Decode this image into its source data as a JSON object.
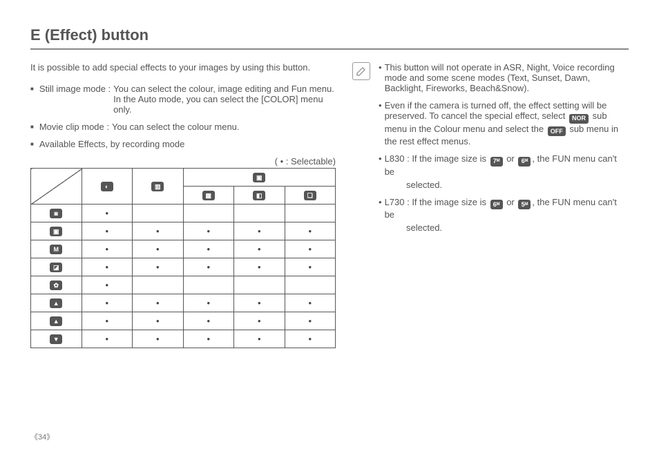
{
  "title": "E (Effect) button",
  "intro": "It is possible to add special effects to your images by using this button.",
  "bullets": {
    "still": {
      "label": "Still image mode :",
      "body": "You can select the colour, image editing and Fun menu. In the Auto mode, you can  select the [COLOR] menu only."
    },
    "movie": {
      "label": "Movie clip mode :",
      "body": "You can select the colour menu."
    },
    "avail": {
      "label": "Available Effects, by recording mode",
      "body": ""
    }
  },
  "legend": "( • : Selectable)",
  "table": {
    "col_icons": [
      "◐",
      "▥",
      "▣"
    ],
    "sub_icons": [
      "▦",
      "◧",
      "❏"
    ],
    "row_icons": [
      "◙",
      "▣",
      "M",
      "◪",
      "✿",
      "▲",
      "▲",
      "▼"
    ],
    "cells": [
      [
        true,
        false,
        false,
        false,
        false
      ],
      [
        true,
        true,
        true,
        true,
        true
      ],
      [
        true,
        true,
        true,
        true,
        true
      ],
      [
        true,
        true,
        true,
        true,
        true
      ],
      [
        true,
        false,
        false,
        false,
        false
      ],
      [
        true,
        true,
        true,
        true,
        true
      ],
      [
        true,
        true,
        true,
        true,
        true
      ],
      [
        true,
        true,
        true,
        true,
        true
      ]
    ]
  },
  "notes": {
    "n1": "This button will not operate in ASR, Night, Voice recording mode and some scene modes (Text, Sunset, Dawn, Backlight, Fireworks, Beach&Snow).",
    "n2_a": "Even if the camera is turned off, the effect setting will be preserved. To cancel the special effect, select ",
    "n2_icon1": "NOR",
    "n2_b": " sub menu in the Colour menu and select the ",
    "n2_icon2": "OFF",
    "n2_c": " sub menu in the rest effect menus.",
    "n3_pre": "L830 : If the image size is ",
    "n3_i1": "7ᴹ",
    "n3_mid": " or ",
    "n3_i2": "6ᴹ",
    "n3_post": ", the FUN menu can't be",
    "n3_tail": "selected.",
    "n4_pre": "L730 : If the image size is ",
    "n4_i1": "6ᴹ",
    "n4_mid": " or ",
    "n4_i2": "5ᴹ",
    "n4_post": ", the FUN menu can't be",
    "n4_tail": "selected."
  },
  "page_number": "34"
}
